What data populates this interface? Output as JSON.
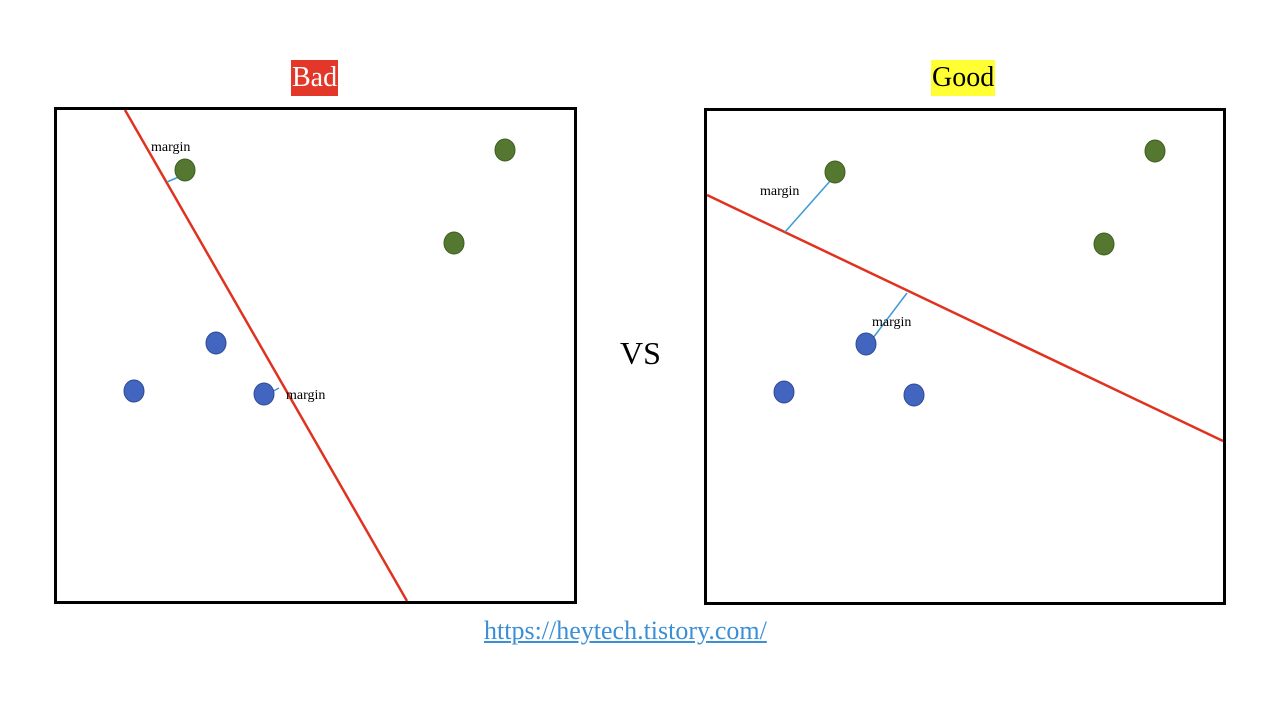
{
  "panels": {
    "bad": {
      "title": "Bad",
      "title_bg": "#e3372a",
      "title_color": "#ffffff",
      "margin_labels": [
        "margin",
        "margin"
      ]
    },
    "good": {
      "title": "Good",
      "title_bg": "#ffff33",
      "title_color": "#000000",
      "margin_labels": [
        "margin",
        "margin"
      ]
    }
  },
  "vs_label": "VS",
  "link": "https://heytech.tistory.com/",
  "colors": {
    "green_class": "#54782f",
    "blue_class": "#4265c0",
    "decision_boundary": "#e0321f",
    "margin_line": "#3a9ad9",
    "frame": "#000000",
    "link": "#3a8fd6"
  }
}
